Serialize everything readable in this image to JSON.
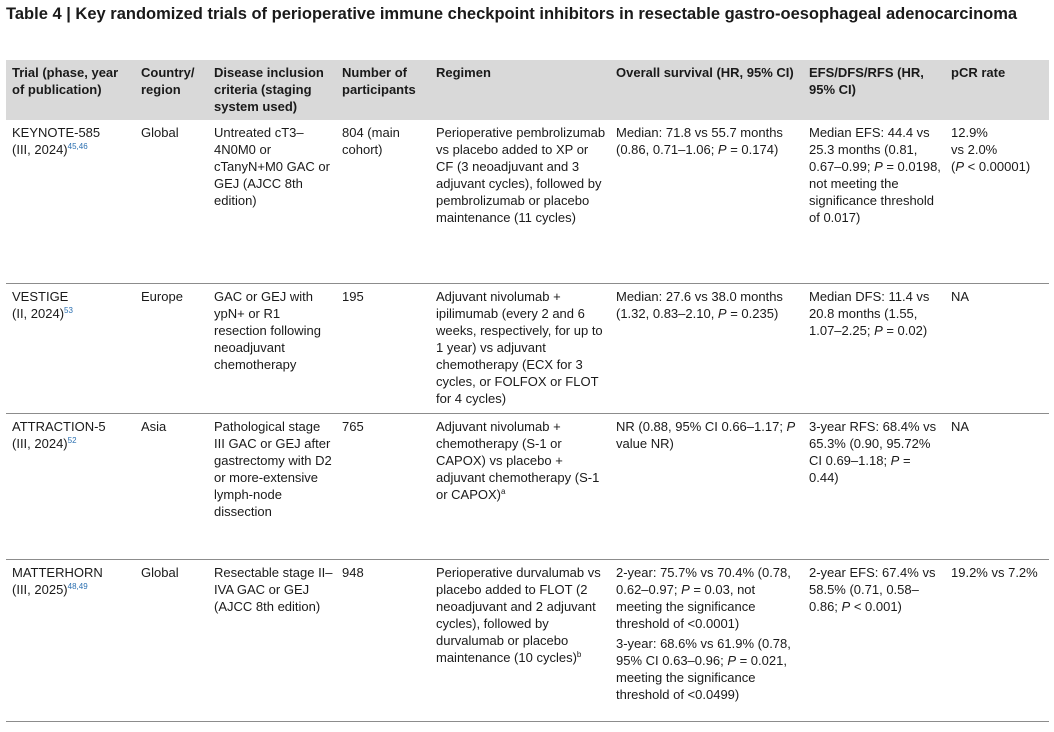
{
  "title": "Table 4 | Key randomized trials of perioperative immune checkpoint inhibitors in resectable gastro-oesophageal adenocarcinoma",
  "columns": [
    "Trial (phase, year of publication)",
    "Country/ region",
    "Disease inclusion criteria (staging system used)",
    "Number of participants",
    "Regimen",
    "Overall survival (HR, 95% CI)",
    "EFS/DFS/RFS (HR, 95% CI)",
    "pCR rate"
  ],
  "rows": [
    {
      "trial_name": "KEYNOTE-585",
      "trial_phase": "(III, 2024)",
      "trial_refs": "45,46",
      "country": "Global",
      "criteria": "Untreated cT3–4N0M0 or cTanyN+M0 GAC or GEJ (AJCC 8th edition)",
      "participants": "804 (main cohort)",
      "regimen": "Perioperative pembrolizumab vs placebo added to XP or CF (3 neoadjuvant and 3 adjuvant cycles), followed by pembrolizumab or placebo maintenance (11 cycles)",
      "os_pre": "Median: 71.8 vs 55.7 months (0.86, 0.71–1.06; ",
      "os_p": "P",
      "os_post": " = 0.174)",
      "efs_pre": "Median EFS: 44.4 vs 25.3 months (0.81, 0.67–0.99; ",
      "efs_p": "P",
      "efs_post": " = 0.0198, not meeting the significance threshold of 0.017)",
      "pcr1": "12.9%",
      "pcr2": "vs 2.0%",
      "pcr3_pre": "(",
      "pcr3_p": "P",
      "pcr3_post": " < 0.00001)"
    },
    {
      "trial_name": "VESTIGE",
      "trial_phase": "(II, 2024)",
      "trial_refs": "53",
      "country": "Europe",
      "criteria": "GAC or GEJ with ypN+ or R1 resection following neoadjuvant chemotherapy",
      "participants": "195",
      "regimen": "Adjuvant nivolumab + ipilimumab (every 2 and 6 weeks, respectively, for up to 1 year) vs adjuvant chemotherapy (ECX for 3 cycles, or FOLFOX or FLOT for 4 cycles)",
      "os_pre": "Median: 27.6 vs 38.0 months (1.32, 0.83–2.10, ",
      "os_p": "P",
      "os_post": " = 0.235)",
      "efs_pre": "Median DFS: 11.4 vs 20.8 months (1.55, 1.07–2.25; ",
      "efs_p": "P",
      "efs_post": " = 0.02)",
      "pcr": "NA"
    },
    {
      "trial_name": "ATTRACTION-5",
      "trial_phase": "(III, 2024)",
      "trial_refs": "52",
      "country": "Asia",
      "criteria": "Pathological stage III GAC or GEJ after gastrectomy with D2 or more-extensive lymph-node dissection",
      "participants": "765",
      "regimen": "Adjuvant nivolumab + chemotherapy (S-1 or CAPOX) vs placebo + adjuvant chemotherapy (S-1 or CAPOX)",
      "regimen_sup": "a",
      "os_pre": "NR (0.88, 95% CI 0.66–1.17; ",
      "os_p": "P",
      "os_post": " value NR)",
      "efs_pre": "3-year RFS: 68.4% vs 65.3% (0.90, 95.72% CI 0.69–1.18; ",
      "efs_p": "P",
      "efs_post": " = 0.44)",
      "pcr": "NA"
    },
    {
      "trial_name": "MATTERHORN",
      "trial_phase": "(III, 2025)",
      "trial_refs": "48,49",
      "country": "Global",
      "criteria": "Resectable stage II–IVA GAC or GEJ (AJCC 8th edition)",
      "participants": "948",
      "regimen": "Perioperative durvalumab vs placebo added to FLOT (2 neoadjuvant and 2 adjuvant cycles), followed by durvalumab or placebo maintenance (10 cycles)",
      "regimen_sup": "b",
      "os_pre": "2-year: 75.7% vs 70.4% (0.78, 0.62–0.97; ",
      "os_p": "P",
      "os_post": " = 0.03, not meeting the significance threshold of <0.0001)",
      "os2_pre": "3-year: 68.6% vs 61.9% (0.78, 95% CI 0.63–0.96; ",
      "os2_p": "P",
      "os2_post": " = 0.021, meeting the significance threshold of <0.0499)",
      "efs_pre": "2-year EFS: 67.4% vs 58.5% (0.71, 0.58–0.86; ",
      "efs_p": "P",
      "efs_post": " < 0.001)",
      "pcr": "19.2% vs 7.2%"
    }
  ]
}
